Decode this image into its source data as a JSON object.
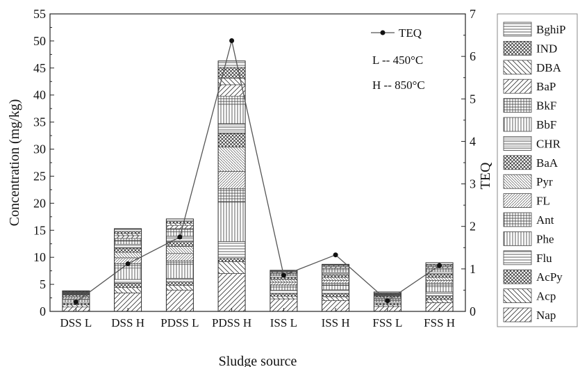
{
  "chart_data": {
    "type": "bar",
    "stacked": true,
    "xlabel": "Sludge source",
    "ylabel": "Concentration (mg/kg)",
    "y2label": "TEQ",
    "ylim": [
      0,
      55
    ],
    "y2lim": [
      0,
      7
    ],
    "yticks": [
      0,
      5,
      10,
      15,
      20,
      25,
      30,
      35,
      40,
      45,
      50,
      55
    ],
    "y2ticks": [
      0,
      1,
      2,
      3,
      4,
      5,
      6,
      7
    ],
    "categories": [
      "DSS L",
      "DSS H",
      "PDSS L",
      "PDSS H",
      "ISS L",
      "ISS H",
      "FSS L",
      "FSS H"
    ],
    "series": [
      {
        "name": "Nap",
        "pattern": "diag-fwd",
        "values": [
          0.8,
          3.4,
          3.9,
          7.0,
          2.3,
          2.0,
          0.9,
          1.6
        ]
      },
      {
        "name": "Acp",
        "pattern": "diag-back",
        "values": [
          0.4,
          1.0,
          0.9,
          2.2,
          0.5,
          0.7,
          0.3,
          0.6
        ]
      },
      {
        "name": "AcPy",
        "pattern": "cross-diag",
        "values": [
          0.3,
          0.8,
          0.7,
          0.6,
          0.5,
          0.6,
          0.3,
          0.7
        ]
      },
      {
        "name": "Flu",
        "pattern": "horiz",
        "values": [
          0.2,
          0.7,
          0.6,
          3.1,
          0.6,
          0.7,
          0.2,
          0.7
        ]
      },
      {
        "name": "Phe",
        "pattern": "vert",
        "values": [
          0.4,
          2.1,
          2.6,
          7.3,
          0.6,
          0.8,
          0.3,
          1.0
        ]
      },
      {
        "name": "Ant",
        "pattern": "grid",
        "values": [
          0.2,
          0.8,
          0.6,
          2.5,
          0.4,
          0.4,
          0.2,
          0.6
        ]
      },
      {
        "name": "FL",
        "pattern": "diag-fwd-s",
        "values": [
          0.3,
          1.1,
          1.4,
          3.2,
          0.5,
          0.5,
          0.2,
          0.5
        ]
      },
      {
        "name": "Pyr",
        "pattern": "diag-back-s",
        "values": [
          0.2,
          1.0,
          1.3,
          4.5,
          0.5,
          0.6,
          0.2,
          0.6
        ]
      },
      {
        "name": "BaA",
        "pattern": "cross-diag",
        "values": [
          0.2,
          0.8,
          0.9,
          2.5,
          0.4,
          0.5,
          0.2,
          0.6
        ]
      },
      {
        "name": "CHR",
        "pattern": "horiz-s",
        "values": [
          0.2,
          0.7,
          1.0,
          1.8,
          0.3,
          0.4,
          0.1,
          0.4
        ]
      },
      {
        "name": "BbF",
        "pattern": "vert",
        "values": [
          0.1,
          0.6,
          0.8,
          3.6,
          0.3,
          0.5,
          0.1,
          0.4
        ]
      },
      {
        "name": "BkF",
        "pattern": "grid",
        "values": [
          0.1,
          0.5,
          0.6,
          1.5,
          0.2,
          0.3,
          0.1,
          0.3
        ]
      },
      {
        "name": "BaP",
        "pattern": "diag-fwd",
        "values": [
          0.1,
          0.5,
          0.6,
          2.1,
          0.2,
          0.3,
          0.1,
          0.3
        ]
      },
      {
        "name": "DBA",
        "pattern": "diag-back",
        "values": [
          0.1,
          0.4,
          0.4,
          1.2,
          0.1,
          0.2,
          0.1,
          0.2
        ]
      },
      {
        "name": "IND",
        "pattern": "cross-diag",
        "values": [
          0.1,
          0.4,
          0.4,
          2.0,
          0.1,
          0.1,
          0.1,
          0.2
        ]
      },
      {
        "name": "BghiP",
        "pattern": "horiz",
        "values": [
          0.1,
          0.5,
          0.4,
          1.2,
          0.1,
          0.1,
          0.2,
          0.3
        ]
      }
    ],
    "teq": {
      "name": "TEQ",
      "values": [
        0.22,
        1.12,
        1.75,
        6.37,
        0.85,
        1.33,
        0.25,
        1.08
      ]
    },
    "annotations": [
      "L -- 450°C",
      "H -- 850°C"
    ]
  }
}
